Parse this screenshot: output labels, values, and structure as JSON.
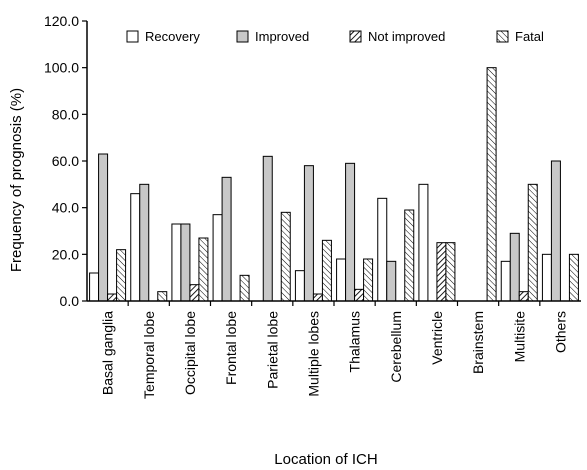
{
  "chart_data": {
    "type": "bar",
    "xlabel": "Location of ICH",
    "ylabel": "Frequency of prognosis (%)",
    "ylim": [
      0,
      120
    ],
    "yticks": [
      "0.0",
      "20.0",
      "40.0",
      "60.0",
      "80.0",
      "100.0",
      "120.0"
    ],
    "grid": false,
    "legend_position": "top",
    "categories": [
      "Basal ganglia",
      "Temporal lobe",
      "Occipital lobe",
      "Frontal lobe",
      "Parietal lobe",
      "Multiple lobes",
      "Thalamus",
      "Cerebellum",
      "Ventricle",
      "Brainstem",
      "Multisite",
      "Others"
    ],
    "series": [
      {
        "name": "Recovery",
        "fill": "white",
        "values": [
          12,
          46,
          33,
          37,
          0,
          13,
          18,
          44,
          50,
          0,
          17,
          20
        ]
      },
      {
        "name": "Improved",
        "fill": "gray",
        "values": [
          63,
          50,
          33,
          53,
          62,
          58,
          59,
          17,
          0,
          0,
          29,
          60
        ]
      },
      {
        "name": "Not improved",
        "fill": "diagonal-hatch-dense",
        "values": [
          3,
          0,
          7,
          0,
          0,
          3,
          5,
          0,
          25,
          0,
          4,
          0
        ]
      },
      {
        "name": "Fatal",
        "fill": "diagonal-hatch",
        "values": [
          22,
          4,
          27,
          11,
          38,
          26,
          18,
          39,
          25,
          100,
          50,
          20
        ]
      }
    ]
  },
  "colors": {
    "axis": "#000000",
    "gray_fill": "#c8c8c8",
    "white_fill": "#ffffff",
    "hatch": "#000000"
  }
}
